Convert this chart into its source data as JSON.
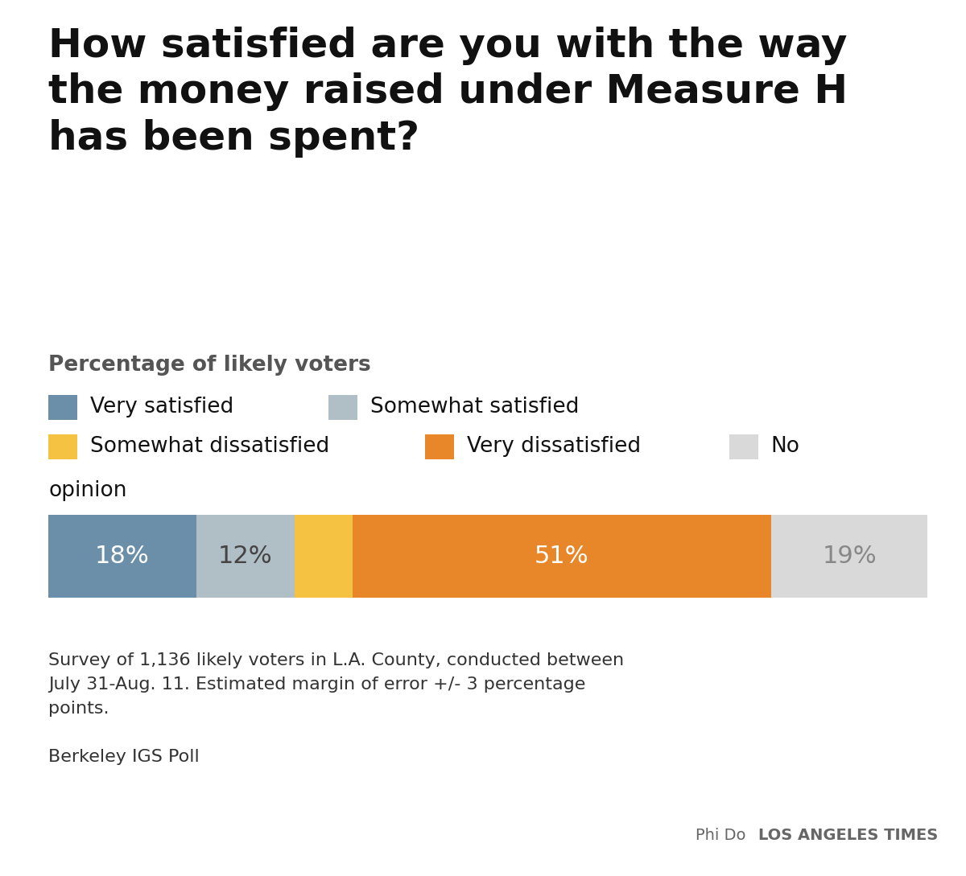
{
  "title": "How satisfied are you with the way\nthe money raised under Measure H\nhas been spent?",
  "subtitle": "Percentage of likely voters",
  "segments": [
    {
      "label": "Very satisfied",
      "value": 18,
      "color": "#6b8fa8"
    },
    {
      "label": "Somewhat satisfied",
      "value": 12,
      "color": "#b0bec5"
    },
    {
      "label": "Somewhat dissatisfied",
      "value": 7,
      "color": "#f5c242"
    },
    {
      "label": "Very dissatisfied",
      "value": 51,
      "color": "#e8872a"
    },
    {
      "label": "No opinion",
      "value": 19,
      "color": "#d9d9d9"
    }
  ],
  "bar_label_colors": [
    "#ffffff",
    "#444444",
    "#ffffff",
    "#ffffff",
    "#888888"
  ],
  "show_label": [
    true,
    true,
    false,
    true,
    true
  ],
  "footnote": "Survey of 1,136 likely voters in L.A. County, conducted between\nJuly 31-Aug. 11. Estimated margin of error +/- 3 percentage\npoints.",
  "source": "Berkeley IGS Poll",
  "credit": "Phi Do",
  "credit_org": "LOS ANGELES TIMES",
  "background_color": "#ffffff",
  "title_fontsize": 36,
  "subtitle_fontsize": 19,
  "legend_fontsize": 19,
  "bar_label_fontsize": 22,
  "footnote_fontsize": 16,
  "source_fontsize": 16,
  "credit_fontsize": 14
}
